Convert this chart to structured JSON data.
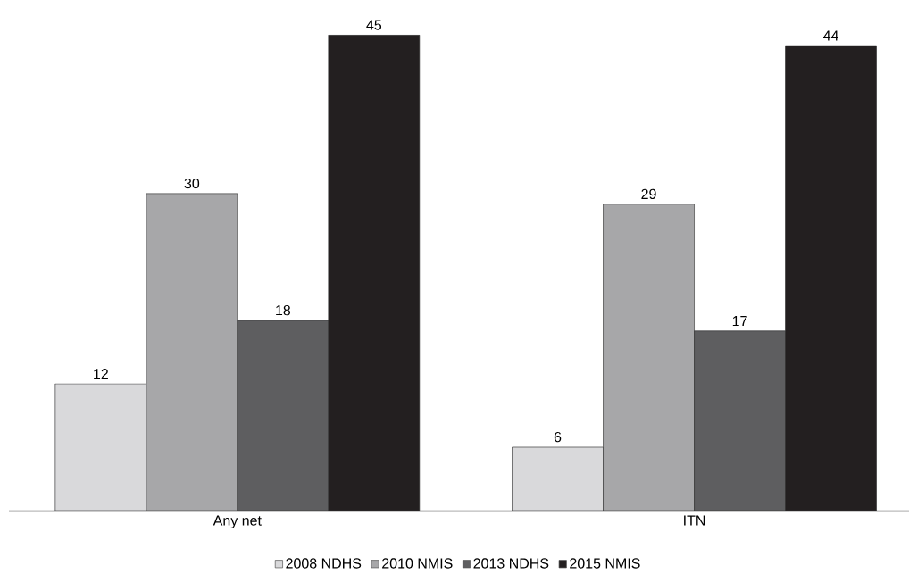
{
  "chart_data": {
    "type": "bar",
    "categories": [
      "Any net",
      "ITN"
    ],
    "series": [
      {
        "name": "2008 NDHS",
        "color": "#d9d9db",
        "values": [
          12,
          6
        ]
      },
      {
        "name": "2010 NMIS",
        "color": "#a7a7a9",
        "values": [
          30,
          29
        ]
      },
      {
        "name": "2013 NDHS",
        "color": "#5e5e60",
        "values": [
          18,
          17
        ]
      },
      {
        "name": "2015 NMIS",
        "color": "#231f20",
        "values": [
          45,
          44
        ]
      }
    ],
    "data_labels": true,
    "legend": "bottom"
  }
}
